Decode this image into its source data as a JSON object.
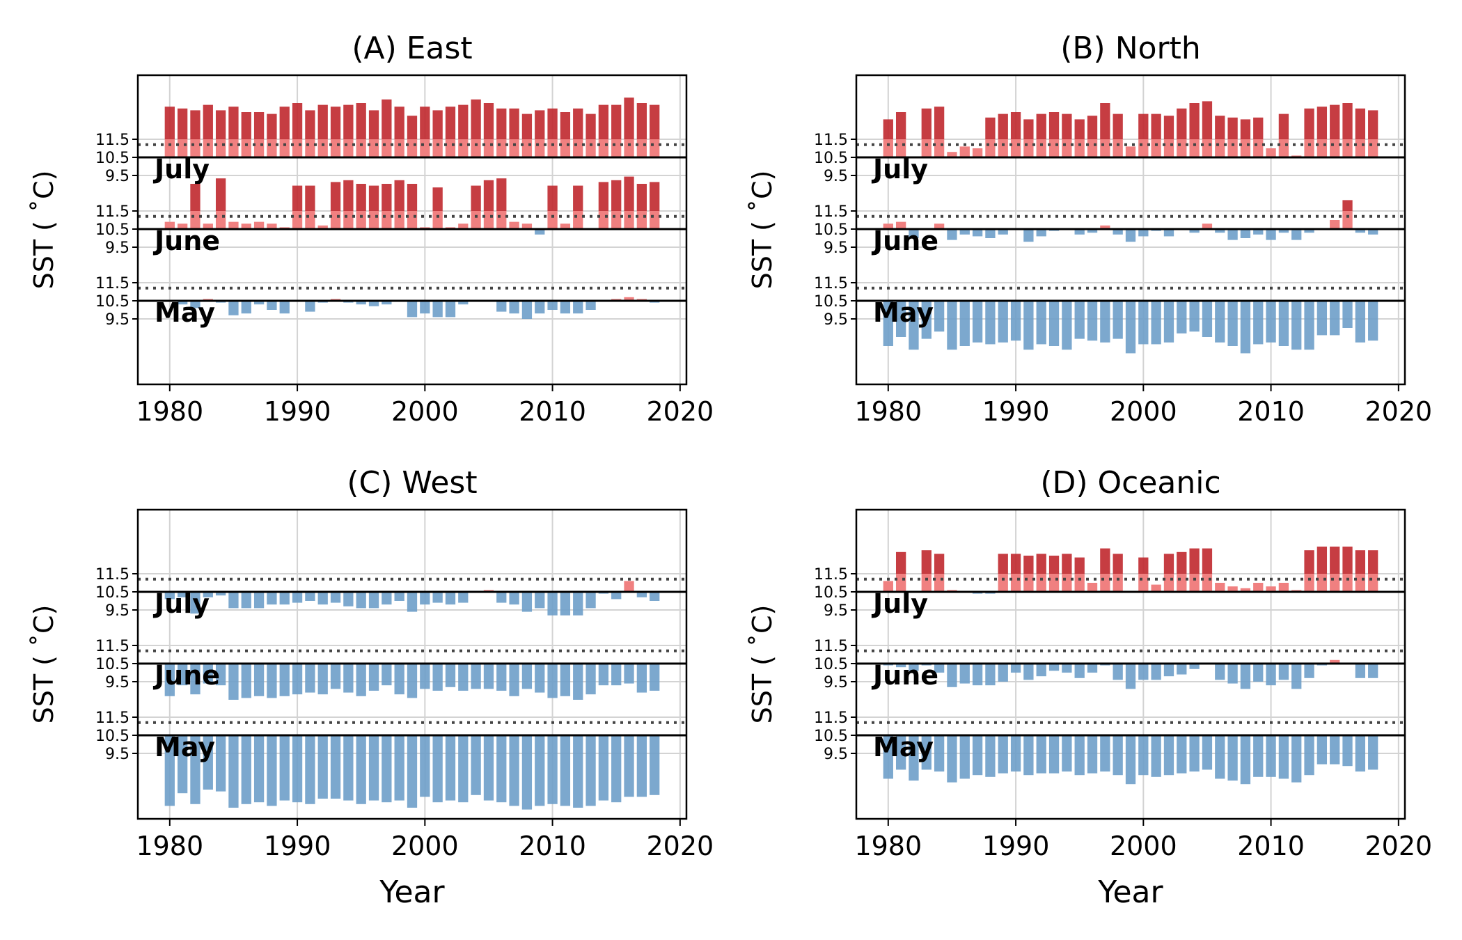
{
  "figure": {
    "shared_ylabel": "SST ( $^\\circ$C)",
    "ylabel_display": "SST ( ˚C)",
    "xlabel": "Year",
    "colors": {
      "warm_strong": "#c0282d",
      "warm_light": "#f08080",
      "cool": "#6e9ec9",
      "grid": "#d3d3d3",
      "threshold": "#444444"
    }
  },
  "chart_data": [
    {
      "type": "bar",
      "title": "(A) East",
      "xlabel": "",
      "ylabel": "SST ( ˚C)",
      "xlim": [
        1977.5,
        2020.5
      ],
      "xticks": [
        1980,
        1990,
        2000,
        2010,
        2020
      ],
      "band_ytick_labels": [
        "11.5",
        "10.5",
        "9.5"
      ],
      "years": [
        1980,
        1981,
        1982,
        1983,
        1984,
        1985,
        1986,
        1987,
        1988,
        1989,
        1990,
        1991,
        1992,
        1993,
        1994,
        1995,
        1996,
        1997,
        1998,
        1999,
        2000,
        2001,
        2002,
        2003,
        2004,
        2005,
        2006,
        2007,
        2008,
        2009,
        2010,
        2011,
        2012,
        2013,
        2014,
        2015,
        2016,
        2017,
        2018
      ],
      "baseline": 10.5,
      "threshold": 11.2,
      "strong_warm_above": 11.5,
      "series": [
        {
          "name": "July",
          "values": [
            13.3,
            13.2,
            13.1,
            13.4,
            13.1,
            13.3,
            13.0,
            13.0,
            12.9,
            13.3,
            13.5,
            13.1,
            13.4,
            13.3,
            13.4,
            13.5,
            13.1,
            13.7,
            13.3,
            12.8,
            13.3,
            13.1,
            13.3,
            13.4,
            13.7,
            13.5,
            13.2,
            13.2,
            12.9,
            13.1,
            13.2,
            13.0,
            13.2,
            12.9,
            13.4,
            13.4,
            13.8,
            13.5,
            13.4
          ]
        },
        {
          "name": "June",
          "values": [
            10.9,
            10.8,
            13.0,
            10.8,
            13.3,
            10.9,
            10.8,
            10.9,
            10.8,
            10.6,
            12.9,
            12.9,
            10.7,
            13.1,
            13.2,
            13.0,
            12.9,
            13.0,
            13.2,
            13.0,
            10.6,
            12.8,
            10.6,
            10.8,
            12.9,
            13.2,
            13.3,
            10.9,
            10.8,
            10.2,
            12.9,
            10.8,
            12.9,
            10.5,
            13.1,
            13.2,
            13.4,
            13.0,
            13.1
          ]
        },
        {
          "name": "May",
          "values": [
            10.5,
            10.3,
            10.1,
            10.6,
            10.4,
            9.7,
            9.8,
            10.3,
            10.0,
            9.8,
            10.5,
            9.9,
            10.4,
            10.6,
            10.4,
            10.3,
            10.2,
            10.3,
            10.5,
            9.6,
            9.8,
            9.6,
            9.6,
            10.3,
            10.5,
            10.5,
            9.9,
            9.8,
            9.5,
            9.8,
            10.0,
            9.8,
            9.8,
            10.0,
            10.5,
            10.6,
            10.7,
            10.6,
            10.4
          ]
        }
      ]
    },
    {
      "type": "bar",
      "title": "(B) North",
      "xlabel": "",
      "ylabel": "SST ( ˚C)",
      "xlim": [
        1977.5,
        2020.5
      ],
      "xticks": [
        1980,
        1990,
        2000,
        2010,
        2020
      ],
      "band_ytick_labels": [
        "11.5",
        "10.5",
        "9.5"
      ],
      "years": [
        1980,
        1981,
        1982,
        1983,
        1984,
        1985,
        1986,
        1987,
        1988,
        1989,
        1990,
        1991,
        1992,
        1993,
        1994,
        1995,
        1996,
        1997,
        1998,
        1999,
        2000,
        2001,
        2002,
        2003,
        2004,
        2005,
        2006,
        2007,
        2008,
        2009,
        2010,
        2011,
        2012,
        2013,
        2014,
        2015,
        2016,
        2017,
        2018
      ],
      "baseline": 10.5,
      "threshold": 11.2,
      "strong_warm_above": 11.5,
      "series": [
        {
          "name": "July",
          "values": [
            12.6,
            13.0,
            10.5,
            13.2,
            13.3,
            10.8,
            11.1,
            11.0,
            12.7,
            12.9,
            13.0,
            12.6,
            12.9,
            13.0,
            12.9,
            12.6,
            12.8,
            13.5,
            12.9,
            11.1,
            12.9,
            12.9,
            12.8,
            13.2,
            13.5,
            13.6,
            12.8,
            12.7,
            12.6,
            12.7,
            11.0,
            12.9,
            10.6,
            13.2,
            13.3,
            13.4,
            13.5,
            13.2,
            13.1
          ]
        },
        {
          "name": "June",
          "values": [
            10.8,
            10.9,
            10.0,
            10.5,
            10.8,
            9.9,
            10.2,
            10.1,
            10.0,
            10.2,
            10.5,
            9.8,
            10.1,
            10.4,
            10.5,
            10.2,
            10.3,
            10.7,
            10.2,
            9.8,
            10.1,
            10.4,
            10.1,
            10.5,
            10.3,
            10.8,
            10.3,
            9.9,
            10.0,
            10.2,
            9.9,
            10.3,
            9.9,
            10.3,
            10.5,
            11.0,
            12.1,
            10.3,
            10.2
          ]
        },
        {
          "name": "May",
          "values": [
            8.0,
            8.5,
            7.8,
            8.4,
            8.8,
            7.8,
            8.0,
            8.2,
            8.1,
            8.2,
            8.3,
            7.8,
            8.1,
            8.0,
            7.8,
            8.4,
            8.3,
            8.2,
            8.4,
            7.6,
            8.1,
            8.1,
            8.2,
            8.7,
            8.8,
            8.5,
            8.2,
            8.0,
            7.6,
            8.1,
            8.2,
            8.0,
            7.8,
            7.8,
            8.6,
            8.6,
            9.0,
            8.2,
            8.3
          ]
        }
      ]
    },
    {
      "type": "bar",
      "title": "(C) West",
      "xlabel": "Year",
      "ylabel": "SST ( ˚C)",
      "xlim": [
        1977.5,
        2020.5
      ],
      "xticks": [
        1980,
        1990,
        2000,
        2010,
        2020
      ],
      "band_ytick_labels": [
        "11.5",
        "10.5",
        "9.5"
      ],
      "years": [
        1980,
        1981,
        1982,
        1983,
        1984,
        1985,
        1986,
        1987,
        1988,
        1989,
        1990,
        1991,
        1992,
        1993,
        1994,
        1995,
        1996,
        1997,
        1998,
        1999,
        2000,
        2001,
        2002,
        2003,
        2004,
        2005,
        2006,
        2007,
        2008,
        2009,
        2010,
        2011,
        2012,
        2013,
        2014,
        2015,
        2016,
        2017,
        2018
      ],
      "baseline": 10.5,
      "threshold": 11.2,
      "strong_warm_above": 11.5,
      "series": [
        {
          "name": "July",
          "values": [
            10.1,
            10.2,
            9.3,
            10.2,
            10.3,
            9.6,
            9.6,
            9.6,
            9.8,
            9.8,
            9.9,
            10.0,
            9.8,
            9.9,
            9.7,
            9.6,
            9.6,
            9.8,
            10.0,
            9.4,
            9.8,
            9.9,
            9.8,
            9.9,
            10.5,
            10.6,
            9.9,
            9.8,
            9.4,
            9.6,
            9.2,
            9.2,
            9.2,
            9.6,
            10.4,
            10.1,
            11.1,
            10.2,
            10.0
          ]
        },
        {
          "name": "June",
          "values": [
            8.7,
            9.3,
            8.8,
            9.4,
            9.3,
            8.5,
            8.6,
            8.7,
            8.6,
            8.7,
            8.8,
            8.9,
            8.8,
            9.1,
            8.9,
            8.7,
            9.0,
            9.3,
            8.8,
            8.6,
            9.1,
            9.0,
            9.2,
            9.0,
            9.1,
            9.1,
            9.0,
            8.7,
            9.1,
            8.9,
            8.6,
            8.7,
            8.5,
            8.8,
            9.3,
            9.3,
            9.4,
            8.9,
            9.0
          ]
        },
        {
          "name": "May",
          "values": [
            6.6,
            7.3,
            6.7,
            7.5,
            7.4,
            6.5,
            6.7,
            6.8,
            6.6,
            6.9,
            6.8,
            6.7,
            7.0,
            7.0,
            6.9,
            6.7,
            6.9,
            6.8,
            6.9,
            6.5,
            7.1,
            6.8,
            6.9,
            6.8,
            7.2,
            6.9,
            6.8,
            6.6,
            6.4,
            6.6,
            6.7,
            6.6,
            6.5,
            6.6,
            6.9,
            6.8,
            7.1,
            7.1,
            7.2
          ]
        }
      ]
    },
    {
      "type": "bar",
      "title": "(D) Oceanic",
      "xlabel": "Year",
      "ylabel": "SST ( ˚C)",
      "xlim": [
        1977.5,
        2020.5
      ],
      "xticks": [
        1980,
        1990,
        2000,
        2010,
        2020
      ],
      "band_ytick_labels": [
        "11.5",
        "10.5",
        "9.5"
      ],
      "years": [
        1980,
        1981,
        1982,
        1983,
        1984,
        1985,
        1986,
        1987,
        1988,
        1989,
        1990,
        1991,
        1992,
        1993,
        1994,
        1995,
        1996,
        1997,
        1998,
        1999,
        2000,
        2001,
        2002,
        2003,
        2004,
        2005,
        2006,
        2007,
        2008,
        2009,
        2010,
        2011,
        2012,
        2013,
        2014,
        2015,
        2016,
        2017,
        2018
      ],
      "baseline": 10.5,
      "threshold": 11.2,
      "strong_warm_above": 11.5,
      "series": [
        {
          "name": "July",
          "values": [
            11.1,
            12.7,
            10.5,
            12.8,
            12.6,
            10.6,
            10.5,
            10.4,
            10.4,
            12.6,
            12.6,
            12.5,
            12.6,
            12.5,
            12.6,
            12.4,
            11.0,
            12.9,
            12.6,
            10.5,
            12.4,
            10.9,
            12.6,
            12.7,
            12.9,
            12.9,
            11.0,
            10.8,
            10.7,
            11.0,
            10.8,
            11.0,
            10.6,
            12.8,
            13.0,
            13.0,
            13.0,
            12.8,
            12.8
          ]
        },
        {
          "name": "June",
          "values": [
            10.4,
            10.3,
            10.1,
            10.4,
            10.0,
            9.2,
            9.4,
            9.3,
            9.3,
            9.5,
            10.0,
            9.6,
            9.8,
            10.1,
            10.0,
            9.7,
            10.0,
            10.4,
            9.6,
            9.1,
            9.6,
            9.6,
            9.8,
            9.9,
            10.2,
            10.5,
            9.6,
            9.4,
            9.1,
            9.5,
            9.3,
            9.6,
            9.1,
            9.7,
            10.4,
            10.7,
            10.5,
            9.7,
            9.7
          ]
        },
        {
          "name": "May",
          "values": [
            8.1,
            8.6,
            8.0,
            8.6,
            8.5,
            7.9,
            8.1,
            8.3,
            8.2,
            8.4,
            8.5,
            8.3,
            8.4,
            8.4,
            8.5,
            8.3,
            8.4,
            8.5,
            8.3,
            7.8,
            8.3,
            8.2,
            8.3,
            8.4,
            8.5,
            8.6,
            8.1,
            8.0,
            7.8,
            8.2,
            8.2,
            8.1,
            7.9,
            8.3,
            8.9,
            8.9,
            8.8,
            8.5,
            8.6
          ]
        }
      ]
    }
  ]
}
